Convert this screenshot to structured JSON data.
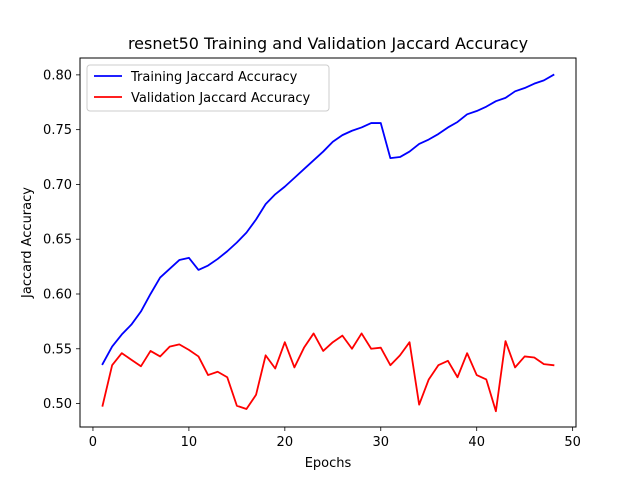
{
  "chart_data": {
    "type": "line",
    "title": "resnet50 Training and Validation Jaccard Accuracy",
    "xlabel": "Epochs",
    "ylabel": "Jaccard Accuracy",
    "xlim": [
      -1.35,
      50.35
    ],
    "ylim": [
      0.4786,
      0.8154
    ],
    "xticks": [
      0,
      10,
      20,
      30,
      40,
      50
    ],
    "yticks": [
      0.5,
      0.55,
      0.6,
      0.65,
      0.7,
      0.75,
      0.8
    ],
    "ytick_labels": [
      "0.50",
      "0.55",
      "0.60",
      "0.65",
      "0.70",
      "0.75",
      "0.80"
    ],
    "grid": false,
    "legend_position": "top-left",
    "x": [
      1,
      2,
      3,
      4,
      5,
      6,
      7,
      8,
      9,
      10,
      11,
      12,
      13,
      14,
      15,
      16,
      17,
      18,
      19,
      20,
      21,
      22,
      23,
      24,
      25,
      26,
      27,
      28,
      29,
      30,
      31,
      32,
      33,
      34,
      35,
      36,
      37,
      38,
      39,
      40,
      41,
      42,
      43,
      44,
      45,
      46,
      47,
      48
    ],
    "series": [
      {
        "name": "Training Jaccard Accuracy",
        "color": "#0000ff",
        "values": [
          0.536,
          0.552,
          0.563,
          0.572,
          0.584,
          0.6,
          0.615,
          0.623,
          0.631,
          0.633,
          0.622,
          0.626,
          0.632,
          0.639,
          0.647,
          0.656,
          0.668,
          0.682,
          0.691,
          0.698,
          0.706,
          0.714,
          0.722,
          0.73,
          0.739,
          0.745,
          0.749,
          0.752,
          0.756,
          0.756,
          0.724,
          0.725,
          0.73,
          0.737,
          0.741,
          0.746,
          0.752,
          0.757,
          0.764,
          0.767,
          0.771,
          0.776,
          0.779,
          0.785,
          0.788,
          0.792,
          0.795,
          0.8
        ]
      },
      {
        "name": "Validation Jaccard Accuracy",
        "color": "#ff0000",
        "values": [
          0.498,
          0.535,
          0.546,
          0.54,
          0.534,
          0.548,
          0.543,
          0.552,
          0.554,
          0.549,
          0.543,
          0.526,
          0.529,
          0.524,
          0.498,
          0.495,
          0.508,
          0.544,
          0.532,
          0.556,
          0.533,
          0.551,
          0.564,
          0.548,
          0.556,
          0.562,
          0.55,
          0.564,
          0.55,
          0.551,
          0.535,
          0.544,
          0.556,
          0.499,
          0.522,
          0.535,
          0.539,
          0.524,
          0.546,
          0.526,
          0.522,
          0.493,
          0.557,
          0.533,
          0.543,
          0.542,
          0.536,
          0.535
        ]
      }
    ]
  }
}
